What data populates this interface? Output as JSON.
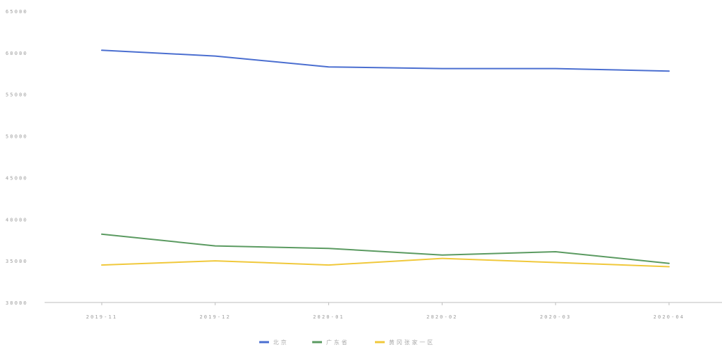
{
  "chart_data": {
    "type": "line",
    "categories": [
      "2019-11",
      "2019-12",
      "2020-01",
      "2020-02",
      "2020-03",
      "2020-04"
    ],
    "ylim": [
      30000,
      65000
    ],
    "yticks": [
      30000,
      35000,
      40000,
      45000,
      50000,
      55000,
      60000,
      65000
    ],
    "grid": false,
    "legend_position": "bottom-center",
    "series": [
      {
        "name": "北京",
        "color": "#4a6ed0",
        "values": [
          60300,
          59600,
          58300,
          58100,
          58100,
          57800
        ]
      },
      {
        "name": "广东省",
        "color": "#5a9a60",
        "values": [
          38200,
          36800,
          36500,
          35700,
          36100,
          34700
        ]
      },
      {
        "name": "黄冈张家一区",
        "color": "#f0c83a",
        "values": [
          34500,
          35000,
          34500,
          35300,
          34800,
          34300
        ]
      }
    ]
  }
}
